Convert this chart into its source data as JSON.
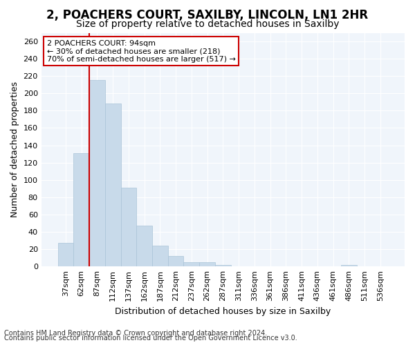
{
  "title_line1": "2, POACHERS COURT, SAXILBY, LINCOLN, LN1 2HR",
  "title_line2": "Size of property relative to detached houses in Saxilby",
  "xlabel": "Distribution of detached houses by size in Saxilby",
  "ylabel": "Number of detached properties",
  "bar_values": [
    27,
    131,
    215,
    188,
    91,
    47,
    24,
    12,
    5,
    5,
    2,
    0,
    0,
    0,
    0,
    0,
    0,
    0,
    2,
    0,
    0
  ],
  "x_labels": [
    "37sqm",
    "62sqm",
    "87sqm",
    "112sqm",
    "137sqm",
    "162sqm",
    "187sqm",
    "212sqm",
    "237sqm",
    "262sqm",
    "287sqm",
    "311sqm",
    "336sqm",
    "361sqm",
    "386sqm",
    "411sqm",
    "436sqm",
    "461sqm",
    "486sqm",
    "511sqm",
    "536sqm"
  ],
  "bar_color": "#c8daea",
  "bar_edge_color": "#aac4d8",
  "vline_color": "#cc0000",
  "vline_x_index": 2,
  "ylim": [
    0,
    270
  ],
  "yticks": [
    0,
    20,
    40,
    60,
    80,
    100,
    120,
    140,
    160,
    180,
    200,
    220,
    240,
    260
  ],
  "annotation_text": "2 POACHERS COURT: 94sqm\n← 30% of detached houses are smaller (218)\n70% of semi-detached houses are larger (517) →",
  "annotation_box_color": "white",
  "annotation_box_edge": "#cc0000",
  "footer_line1": "Contains HM Land Registry data © Crown copyright and database right 2024.",
  "footer_line2": "Contains public sector information licensed under the Open Government Licence v3.0.",
  "background_color": "#ffffff",
  "plot_bg_color": "#f0f5fb",
  "grid_color": "#ffffff",
  "title1_fontsize": 12,
  "title2_fontsize": 10,
  "axis_label_fontsize": 9,
  "tick_fontsize": 8,
  "footer_fontsize": 7,
  "annotation_fontsize": 8
}
